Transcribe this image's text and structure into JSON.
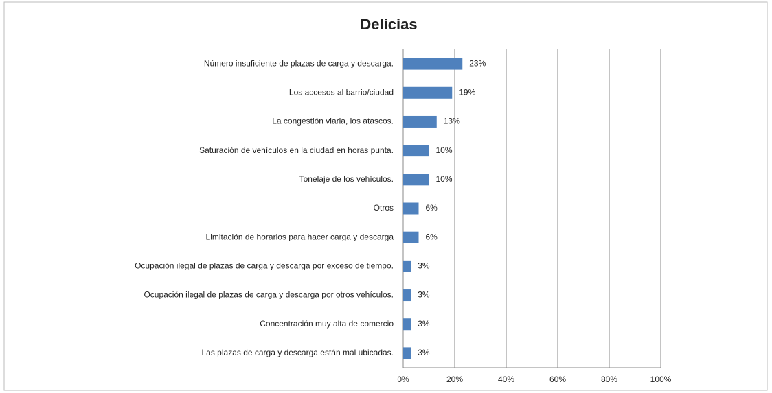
{
  "chart_data": {
    "type": "bar",
    "orientation": "horizontal",
    "title": "Delicias",
    "categories": [
      "Número insuficiente de plazas de carga y descarga.",
      "Los accesos al barrio/ciudad",
      "La congestión viaria, los atascos.",
      "Saturación de vehículos en la ciudad en horas punta.",
      "Tonelaje de los vehículos.",
      "Otros",
      "Limitación de horarios para hacer carga y descarga",
      "Ocupación ilegal de plazas de carga y descarga por exceso de tiempo.",
      "Ocupación ilegal de plazas de carga y descarga por otros vehículos.",
      "Concentración muy alta de comercio",
      "Las plazas de carga y descarga están mal ubicadas."
    ],
    "values": [
      23,
      19,
      13,
      10,
      10,
      6,
      6,
      3,
      3,
      3,
      3
    ],
    "value_labels": [
      "23%",
      "19%",
      "13%",
      "10%",
      "10%",
      "6%",
      "6%",
      "3%",
      "3%",
      "3%",
      "3%"
    ],
    "color": "#4f81bd",
    "xlim": [
      0,
      100
    ],
    "xticks": [
      {
        "value": 0,
        "label": "0%"
      },
      {
        "value": 20,
        "label": "20%"
      },
      {
        "value": 40,
        "label": "40%"
      },
      {
        "value": 60,
        "label": "60%"
      },
      {
        "value": 80,
        "label": "80%"
      },
      {
        "value": 100,
        "label": "100%"
      }
    ],
    "grid": true
  }
}
